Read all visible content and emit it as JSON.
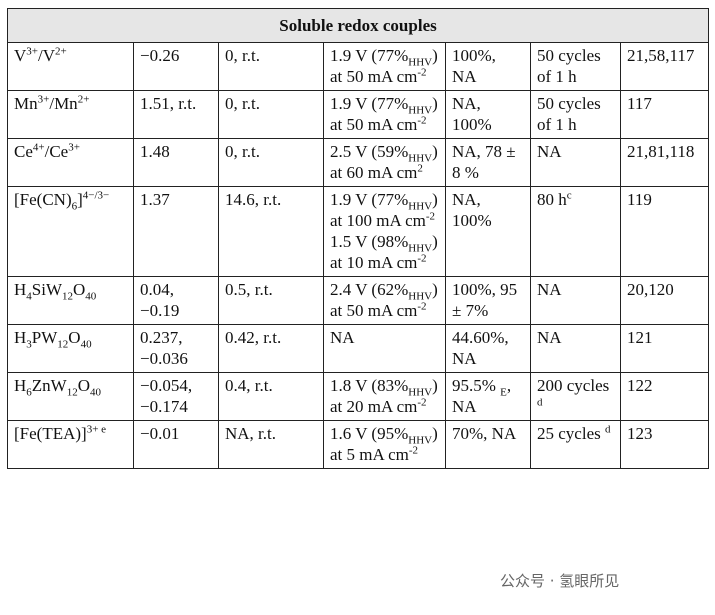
{
  "table": {
    "title": "Soluble redox couples",
    "rows": [
      [
        [
          [
            {
              "t": "V"
            },
            {
              "sup": "3+"
            },
            {
              "t": "/V"
            },
            {
              "sup": "2+"
            }
          ]
        ],
        [
          [
            {
              "t": "−0.26"
            }
          ]
        ],
        [
          [
            {
              "t": "0, r.t."
            }
          ]
        ],
        [
          [
            {
              "t": "1.9 V (77%"
            },
            {
              "sub": "HHV"
            },
            {
              "t": ") at 50 mA cm"
            },
            {
              "sup": "-2"
            }
          ]
        ],
        [
          [
            {
              "t": "100%, NA"
            }
          ]
        ],
        [
          [
            {
              "t": "50 cycles of 1 h"
            }
          ]
        ],
        [
          [
            {
              "t": "21,58,117"
            }
          ]
        ]
      ],
      [
        [
          [
            {
              "t": "Mn"
            },
            {
              "sup": "3+"
            },
            {
              "t": "/Mn"
            },
            {
              "sup": "2+"
            }
          ]
        ],
        [
          [
            {
              "t": "1.51, r.t."
            }
          ]
        ],
        [
          [
            {
              "t": "0, r.t."
            }
          ]
        ],
        [
          [
            {
              "t": "1.9 V (77%"
            },
            {
              "sub": "HHV"
            },
            {
              "t": ") at 50 mA cm"
            },
            {
              "sup": "-2"
            }
          ]
        ],
        [
          [
            {
              "t": "NA, 100%"
            }
          ]
        ],
        [
          [
            {
              "t": "50 cycles of 1 h"
            }
          ]
        ],
        [
          [
            {
              "t": "117"
            }
          ]
        ]
      ],
      [
        [
          [
            {
              "t": "Ce"
            },
            {
              "sup": "4+"
            },
            {
              "t": "/Ce"
            },
            {
              "sup": "3+"
            }
          ]
        ],
        [
          [
            {
              "t": "1.48"
            }
          ]
        ],
        [
          [
            {
              "t": "0, r.t."
            }
          ]
        ],
        [
          [
            {
              "t": "2.5 V (59%"
            },
            {
              "sub": "HHV"
            },
            {
              "t": ") at 60 mA cm"
            },
            {
              "sup": "2"
            }
          ]
        ],
        [
          [
            {
              "t": "NA, 78 ± 8 %"
            }
          ]
        ],
        [
          [
            {
              "t": "NA"
            }
          ]
        ],
        [
          [
            {
              "t": "21,81,118"
            }
          ]
        ]
      ],
      [
        [
          [
            {
              "t": "[Fe(CN)"
            },
            {
              "sub": "6"
            },
            {
              "t": "]"
            },
            {
              "sup": "4−/3−"
            }
          ]
        ],
        [
          [
            {
              "t": "1.37"
            }
          ]
        ],
        [
          [
            {
              "t": "14.6, r.t."
            }
          ]
        ],
        [
          [
            {
              "t": "1.9 V (77%"
            },
            {
              "sub": "HHV"
            },
            {
              "t": ") at 100 mA cm"
            },
            {
              "sup": "-2"
            }
          ],
          [
            {
              "t": "1.5 V (98%"
            },
            {
              "sub": "HHV"
            },
            {
              "t": ") at 10 mA cm"
            },
            {
              "sup": "-2"
            }
          ]
        ],
        [
          [
            {
              "t": "NA, 100%"
            }
          ]
        ],
        [
          [
            {
              "t": "80 h"
            },
            {
              "sup": "c"
            }
          ]
        ],
        [
          [
            {
              "t": "119"
            }
          ]
        ]
      ],
      [
        [
          [
            {
              "t": "H"
            },
            {
              "sub": "4"
            },
            {
              "t": "SiW"
            },
            {
              "sub": "12"
            },
            {
              "t": "O"
            },
            {
              "sub": "40"
            }
          ]
        ],
        [
          [
            {
              "t": "0.04, −0.19"
            }
          ]
        ],
        [
          [
            {
              "t": "0.5, r.t."
            }
          ]
        ],
        [
          [
            {
              "t": "2.4 V (62%"
            },
            {
              "sub": "HHV"
            },
            {
              "t": ") at 50 mA cm"
            },
            {
              "sup": "-2"
            }
          ]
        ],
        [
          [
            {
              "t": "100%, 95 ± 7%"
            }
          ]
        ],
        [
          [
            {
              "t": "NA"
            }
          ]
        ],
        [
          [
            {
              "t": "20,120"
            }
          ]
        ]
      ],
      [
        [
          [
            {
              "t": "H"
            },
            {
              "sub": "3"
            },
            {
              "t": "PW"
            },
            {
              "sub": "12"
            },
            {
              "t": "O"
            },
            {
              "sub": "40"
            }
          ]
        ],
        [
          [
            {
              "t": "0.237, −0.036"
            }
          ]
        ],
        [
          [
            {
              "t": "0.42, r.t."
            }
          ]
        ],
        [
          [
            {
              "t": "NA"
            }
          ]
        ],
        [
          [
            {
              "t": "44.60%, NA"
            }
          ]
        ],
        [
          [
            {
              "t": "NA"
            }
          ]
        ],
        [
          [
            {
              "t": "121"
            }
          ]
        ]
      ],
      [
        [
          [
            {
              "t": "H"
            },
            {
              "sub": "6"
            },
            {
              "t": "ZnW"
            },
            {
              "sub": "12"
            },
            {
              "t": "O"
            },
            {
              "sub": "40"
            }
          ]
        ],
        [
          [
            {
              "t": "−0.054, −0.174"
            }
          ]
        ],
        [
          [
            {
              "t": "0.4, r.t."
            }
          ]
        ],
        [
          [
            {
              "t": "1.8 V (83%"
            },
            {
              "sub": "HHV"
            },
            {
              "t": ") at 20 mA cm"
            },
            {
              "sup": "-2"
            }
          ]
        ],
        [
          [
            {
              "t": "95.5% "
            },
            {
              "sub": "E"
            },
            {
              "t": ", NA"
            }
          ]
        ],
        [
          [
            {
              "t": "200 cycles "
            },
            {
              "sup": "d"
            }
          ]
        ],
        [
          [
            {
              "t": "122"
            }
          ]
        ]
      ],
      [
        [
          [
            {
              "t": "[Fe(TEA)]"
            },
            {
              "sup": "3+ e"
            }
          ]
        ],
        [
          [
            {
              "t": "−0.01"
            }
          ]
        ],
        [
          [
            {
              "t": "NA, r.t."
            }
          ]
        ],
        [
          [
            {
              "t": "1.6 V (95%"
            },
            {
              "sub": "HHV"
            },
            {
              "t": ") at 5 mA cm"
            },
            {
              "sup": "-2"
            }
          ]
        ],
        [
          [
            {
              "t": "70%, NA"
            }
          ]
        ],
        [
          [
            {
              "t": "25 cycles "
            },
            {
              "sup": "d"
            }
          ]
        ],
        [
          [
            {
              "t": "123"
            }
          ]
        ]
      ]
    ]
  },
  "watermark": "公众号 · 氢眼所见"
}
